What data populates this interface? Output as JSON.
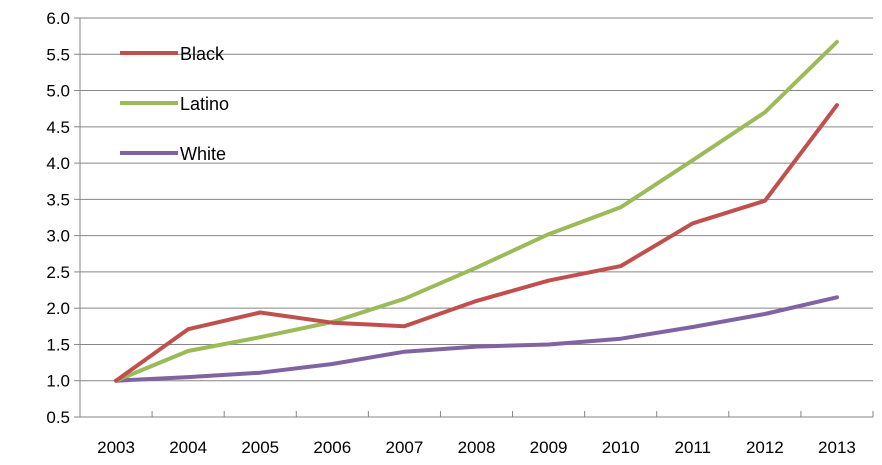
{
  "chart_data": {
    "type": "line",
    "title": "",
    "xlabel": "",
    "ylabel": "",
    "categories": [
      "2003",
      "2004",
      "2005",
      "2006",
      "2007",
      "2008",
      "2009",
      "2010",
      "2011",
      "2012",
      "2013"
    ],
    "ylim": [
      0.5,
      6.0
    ],
    "yticks": [
      "0.5",
      "1.0",
      "1.5",
      "2.0",
      "2.5",
      "3.0",
      "3.5",
      "4.0",
      "4.5",
      "5.0",
      "5.5",
      "6.0"
    ],
    "grid": "horizontal",
    "legend_position": "top-left",
    "series": [
      {
        "name": "Black",
        "color": "#c0504d",
        "values": [
          1.0,
          1.71,
          1.94,
          1.8,
          1.75,
          2.1,
          2.38,
          2.58,
          3.17,
          3.48,
          4.8
        ]
      },
      {
        "name": "Latino",
        "color": "#9bbb59",
        "values": [
          1.0,
          1.41,
          1.6,
          1.81,
          2.13,
          2.56,
          3.02,
          3.39,
          4.04,
          4.7,
          5.67
        ]
      },
      {
        "name": "White",
        "color": "#8064a2",
        "values": [
          1.0,
          1.05,
          1.11,
          1.23,
          1.4,
          1.47,
          1.5,
          1.58,
          1.74,
          1.92,
          2.15
        ]
      }
    ]
  }
}
